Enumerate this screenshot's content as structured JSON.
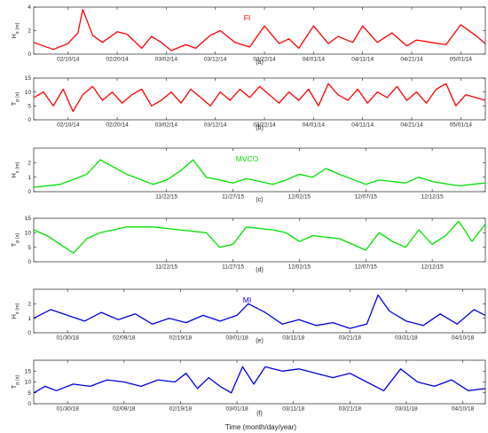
{
  "figure": {
    "xlabel": "Time (month/day/year)"
  },
  "chart_data": [
    {
      "type": "line",
      "panel": "(a)",
      "station": "FI",
      "color": "#ff0000",
      "ylabel": "H_s (m)",
      "ylim": [
        0,
        4
      ],
      "yticks": [
        0,
        2,
        4
      ],
      "xticks": [
        "02/10/14",
        "02/20/14",
        "03/02/14",
        "03/12/14",
        "03/22/14",
        "04/01/14",
        "04/11/14",
        "04/21/14",
        "05/01/14"
      ],
      "x_start": "2014-02-03",
      "x_end": "2014-05-06",
      "series": [
        {
          "x": [
            "2014-02-03",
            "2014-02-07",
            "2014-02-10",
            "2014-02-12",
            "2014-02-13",
            "2014-02-15",
            "2014-02-17",
            "2014-02-20",
            "2014-02-22",
            "2014-02-25",
            "2014-02-27",
            "2014-03-01",
            "2014-03-03",
            "2014-03-06",
            "2014-03-08",
            "2014-03-11",
            "2014-03-13",
            "2014-03-16",
            "2014-03-19",
            "2014-03-22",
            "2014-03-25",
            "2014-03-27",
            "2014-03-29",
            "2014-04-01",
            "2014-04-04",
            "2014-04-06",
            "2014-04-09",
            "2014-04-11",
            "2014-04-14",
            "2014-04-17",
            "2014-04-20",
            "2014-04-22",
            "2014-04-25",
            "2014-04-28",
            "2014-05-01",
            "2014-05-04",
            "2014-05-06"
          ],
          "y": [
            1.0,
            0.4,
            0.9,
            1.8,
            3.8,
            1.6,
            1.0,
            1.9,
            1.7,
            0.5,
            1.5,
            1.0,
            0.3,
            0.8,
            0.5,
            1.6,
            2.0,
            1.0,
            0.6,
            2.4,
            0.9,
            1.3,
            0.5,
            2.4,
            0.9,
            1.5,
            1.0,
            2.4,
            1.0,
            1.8,
            0.7,
            1.2,
            1.0,
            0.8,
            2.5,
            1.6,
            0.9
          ]
        }
      ]
    },
    {
      "type": "line",
      "panel": "(b)",
      "color": "#ff0000",
      "ylabel": "T_p (s)",
      "ylim": [
        0,
        15
      ],
      "yticks": [
        0,
        5,
        10,
        15
      ],
      "xticks": [
        "02/10/14",
        "02/20/14",
        "03/02/14",
        "03/12/14",
        "03/22/14",
        "04/01/14",
        "04/11/14",
        "04/21/14",
        "05/01/14"
      ],
      "x_start": "2014-02-03",
      "x_end": "2014-05-06",
      "series": [
        {
          "x": [
            "2014-02-03",
            "2014-02-05",
            "2014-02-07",
            "2014-02-09",
            "2014-02-11",
            "2014-02-13",
            "2014-02-15",
            "2014-02-17",
            "2014-02-19",
            "2014-02-21",
            "2014-02-23",
            "2014-02-25",
            "2014-02-27",
            "2014-03-01",
            "2014-03-03",
            "2014-03-05",
            "2014-03-07",
            "2014-03-09",
            "2014-03-11",
            "2014-03-13",
            "2014-03-15",
            "2014-03-17",
            "2014-03-19",
            "2014-03-21",
            "2014-03-23",
            "2014-03-25",
            "2014-03-27",
            "2014-03-29",
            "2014-03-31",
            "2014-04-02",
            "2014-04-04",
            "2014-04-06",
            "2014-04-08",
            "2014-04-10",
            "2014-04-12",
            "2014-04-14",
            "2014-04-16",
            "2014-04-18",
            "2014-04-20",
            "2014-04-22",
            "2014-04-24",
            "2014-04-26",
            "2014-04-28",
            "2014-04-30",
            "2014-05-02",
            "2014-05-04",
            "2014-05-06"
          ],
          "y": [
            8,
            10,
            5,
            11,
            3,
            9,
            12,
            7,
            10,
            6,
            9,
            11,
            5,
            7,
            10,
            6,
            11,
            8,
            5,
            10,
            7,
            11,
            8,
            12,
            9,
            6,
            10,
            7,
            11,
            5,
            13,
            9,
            7,
            11,
            6,
            10,
            8,
            12,
            7,
            10,
            6,
            11,
            13,
            5,
            9,
            8,
            7
          ]
        }
      ]
    },
    {
      "type": "line",
      "panel": "(c)",
      "station": "MVCO",
      "color": "#00e000",
      "ylabel": "H_s (m)",
      "ylim": [
        0,
        3
      ],
      "yticks": [
        0,
        1,
        2
      ],
      "xticks": [
        "11/22/15",
        "11/27/15",
        "12/02/15",
        "12/07/15",
        "12/12/15"
      ],
      "x_start": "2015-11-12",
      "x_end": "2015-12-16",
      "series": [
        {
          "x": [
            "2015-11-12",
            "2015-11-14",
            "2015-11-16",
            "2015-11-17",
            "2015-11-19",
            "2015-11-21",
            "2015-11-22",
            "2015-11-23",
            "2015-11-24",
            "2015-11-25",
            "2015-11-27",
            "2015-11-28",
            "2015-11-30",
            "2015-12-01",
            "2015-12-02",
            "2015-12-03",
            "2015-12-04",
            "2015-12-05",
            "2015-12-07",
            "2015-12-08",
            "2015-12-10",
            "2015-12-11",
            "2015-12-12",
            "2015-12-14",
            "2015-12-16"
          ],
          "y": [
            0.3,
            0.5,
            1.2,
            2.2,
            1.2,
            0.5,
            0.8,
            1.4,
            2.2,
            1.0,
            0.6,
            0.9,
            0.5,
            0.8,
            1.2,
            1.0,
            1.6,
            1.2,
            0.5,
            0.8,
            0.6,
            1.0,
            0.7,
            0.4,
            0.6
          ]
        }
      ]
    },
    {
      "type": "line",
      "panel": "(d)",
      "color": "#00e000",
      "ylabel": "T_p (s)",
      "ylim": [
        0,
        15
      ],
      "yticks": [
        0,
        5,
        10,
        15
      ],
      "xticks": [
        "11/22/15",
        "11/27/15",
        "12/02/15",
        "12/07/15",
        "12/12/15"
      ],
      "x_start": "2015-11-12",
      "x_end": "2015-12-16",
      "series": [
        {
          "x": [
            "2015-11-12",
            "2015-11-13",
            "2015-11-14",
            "2015-11-15",
            "2015-11-16",
            "2015-11-17",
            "2015-11-19",
            "2015-11-21",
            "2015-11-23",
            "2015-11-25",
            "2015-11-26",
            "2015-11-27",
            "2015-11-28",
            "2015-11-30",
            "2015-12-01",
            "2015-12-02",
            "2015-12-03",
            "2015-12-05",
            "2015-12-06",
            "2015-12-07",
            "2015-12-08",
            "2015-12-09",
            "2015-12-10",
            "2015-12-11",
            "2015-12-12",
            "2015-12-13",
            "2015-12-14",
            "2015-12-15",
            "2015-12-16"
          ],
          "y": [
            11,
            9,
            6,
            3,
            8,
            10,
            12,
            12,
            11,
            10,
            5,
            6,
            12,
            11,
            10,
            7,
            9,
            8,
            6,
            4,
            10,
            7,
            5,
            11,
            6,
            9,
            14,
            7,
            13
          ]
        }
      ]
    },
    {
      "type": "line",
      "panel": "(e)",
      "station": "MI",
      "color": "#0000e6",
      "ylabel": "H_s (m)",
      "ylim": [
        0,
        3
      ],
      "yticks": [
        0,
        1,
        2
      ],
      "xticks": [
        "01/30/18",
        "02/09/18",
        "02/19/18",
        "03/01/18",
        "03/11/18",
        "03/21/18",
        "03/31/18",
        "04/10/18"
      ],
      "x_start": "2018-01-24",
      "x_end": "2018-04-14",
      "series": [
        {
          "x": [
            "2018-01-24",
            "2018-01-27",
            "2018-01-30",
            "2018-02-02",
            "2018-02-05",
            "2018-02-08",
            "2018-02-11",
            "2018-02-14",
            "2018-02-17",
            "2018-02-20",
            "2018-02-23",
            "2018-02-26",
            "2018-03-01",
            "2018-03-03",
            "2018-03-06",
            "2018-03-09",
            "2018-03-12",
            "2018-03-15",
            "2018-03-18",
            "2018-03-21",
            "2018-03-24",
            "2018-03-26",
            "2018-03-28",
            "2018-03-31",
            "2018-04-03",
            "2018-04-06",
            "2018-04-09",
            "2018-04-12",
            "2018-04-14"
          ],
          "y": [
            1.0,
            1.6,
            1.2,
            0.8,
            1.4,
            0.9,
            1.3,
            0.6,
            1.0,
            0.7,
            1.2,
            0.8,
            1.2,
            2.0,
            1.4,
            0.6,
            0.9,
            0.5,
            0.7,
            0.3,
            0.6,
            2.6,
            1.5,
            0.8,
            0.5,
            1.3,
            0.6,
            1.6,
            1.2
          ]
        }
      ]
    },
    {
      "type": "line",
      "panel": "(f)",
      "color": "#0000e6",
      "ylabel": "T_p (s)",
      "ylim": [
        0,
        20
      ],
      "yticks": [
        0,
        5,
        10,
        15
      ],
      "xticks": [
        "01/30/18",
        "02/09/18",
        "02/19/18",
        "03/01/18",
        "03/11/18",
        "03/21/18",
        "03/31/18",
        "04/10/18"
      ],
      "x_start": "2018-01-24",
      "x_end": "2018-04-14",
      "series": [
        {
          "x": [
            "2018-01-24",
            "2018-01-26",
            "2018-01-28",
            "2018-01-31",
            "2018-02-03",
            "2018-02-06",
            "2018-02-09",
            "2018-02-12",
            "2018-02-15",
            "2018-02-18",
            "2018-02-20",
            "2018-02-22",
            "2018-02-24",
            "2018-02-26",
            "2018-02-28",
            "2018-03-02",
            "2018-03-04",
            "2018-03-06",
            "2018-03-09",
            "2018-03-12",
            "2018-03-15",
            "2018-03-18",
            "2018-03-21",
            "2018-03-24",
            "2018-03-27",
            "2018-03-30",
            "2018-04-02",
            "2018-04-05",
            "2018-04-08",
            "2018-04-11",
            "2018-04-14"
          ],
          "y": [
            5,
            8,
            6,
            9,
            8,
            11,
            10,
            8,
            11,
            10,
            14,
            7,
            12,
            8,
            5,
            17,
            9,
            17,
            15,
            16,
            14,
            12,
            14,
            10,
            6,
            16,
            10,
            8,
            11,
            6,
            7
          ]
        }
      ]
    }
  ]
}
